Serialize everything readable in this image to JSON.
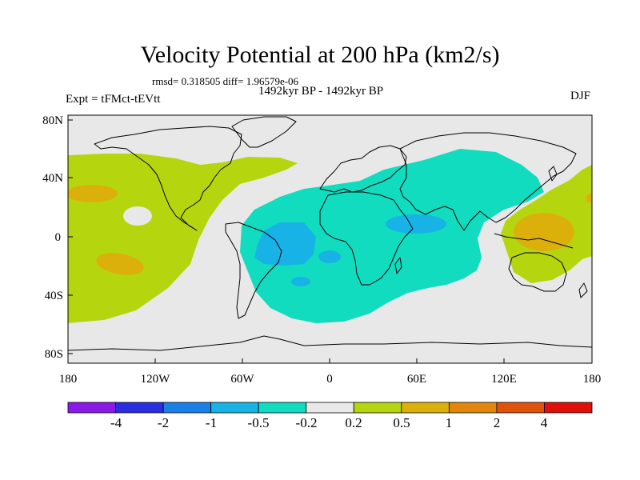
{
  "title": "Velocity Potential at 200 hPa (km2/s)",
  "stats": "rmsd= 0.318505  diff= 1.96579e-06",
  "period": "1492kyr BP - 1492kyr BP",
  "experiment": "Expt = tFMct-tEVtt",
  "season": "DJF",
  "map_axes": {
    "lat_labels": [
      "80N",
      "40N",
      "0",
      "40S",
      "80S"
    ],
    "lon_labels": [
      "180",
      "120W",
      "60W",
      "0",
      "60E",
      "120E",
      "180"
    ]
  },
  "colorbar": {
    "labels": [
      "-4",
      "-2",
      "-1",
      "-0.5",
      "-0.2",
      "0.2",
      "0.5",
      "1",
      "2",
      "4"
    ],
    "colors": [
      "#8a1ae8",
      "#2a2ee0",
      "#1c7fe8",
      "#17b3e6",
      "#12dcc0",
      "#e8e8e8",
      "#b5d60e",
      "#dcb00a",
      "#e3870c",
      "#e0520a",
      "#e00f0a"
    ]
  },
  "field_colors": {
    "neutral": "#e8e8e8",
    "positive_weak": "#b5d60e",
    "positive_mid": "#dcb00a",
    "negative_weak": "#12dcc0",
    "negative_mid": "#17b3e6",
    "coast": "#000000"
  }
}
